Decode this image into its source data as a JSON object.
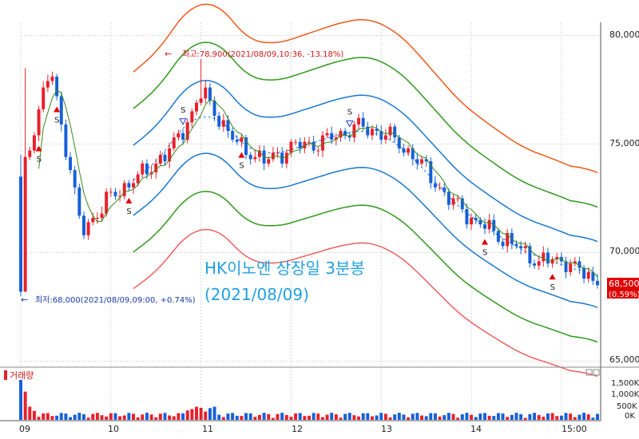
{
  "colors": {
    "up": "#e8202a",
    "down": "#1560d8",
    "ma": "#3a8a1a",
    "band_outer_top": "#ee5a1a",
    "band_mid": "#2f9a1a",
    "band_inner": "#1a78d0",
    "center": "#1a78d0",
    "band_outer_bottom": "#f06060",
    "annotation": "#d01818",
    "caption": "#22a0e0",
    "axis_text": "#222222",
    "price_tag_bg": "#e00000"
  },
  "chart_data": {
    "type": "candlestick",
    "title": "HK이노엔 상장일 3분봉",
    "subtitle": "(2021/08/09)",
    "x_tick_labels": [
      "09",
      "10",
      "11",
      "12",
      "13",
      "14",
      "15:00"
    ],
    "y_tick_labels": [
      "80,000",
      "75,000",
      "70,000",
      "65,000"
    ],
    "ylim": [
      64800,
      80600
    ],
    "last_price": "68,500",
    "last_change": "(0.59%)",
    "high_annotation": "최고:78,900(2021/08/09,10:36, -13.18%)",
    "low_annotation": "최저:68,000(2021/08/09,09:00, +0.74%)",
    "high": 78900,
    "low": 68000,
    "candle_count": 129,
    "key_prices": [
      73500,
      78500,
      71000,
      72600,
      73600,
      74800,
      77400,
      75200,
      74200,
      74900,
      75100,
      75800,
      75500,
      74400,
      72600,
      71400,
      70600,
      69600,
      69600,
      68500
    ],
    "volume_panel": {
      "label": "거래량",
      "y_tick_labels": [
        "1,500K",
        "1,000K",
        "500K",
        "0K"
      ],
      "ylim": [
        0,
        1900000
      ]
    }
  }
}
